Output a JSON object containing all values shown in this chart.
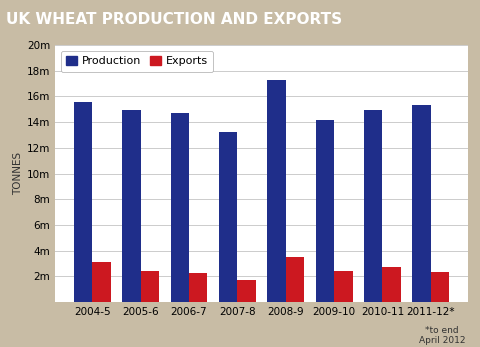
{
  "title": "UK WHEAT PRODUCTION AND EXPORTS",
  "title_bg_color": "#cc1820",
  "title_text_color": "#ffffff",
  "ylabel": "TONNES",
  "categories": [
    "2004-5",
    "2005-6",
    "2006-7",
    "2007-8",
    "2008-9",
    "2009-10",
    "2010-11",
    "2011-12*"
  ],
  "production": [
    15.55,
    14.95,
    14.75,
    13.2,
    17.25,
    14.15,
    14.95,
    15.3
  ],
  "exports": [
    3.1,
    2.4,
    2.25,
    1.7,
    3.5,
    2.4,
    2.7,
    2.3
  ],
  "production_color": "#1f2e8a",
  "exports_color": "#cc1820",
  "ylim": [
    0,
    20
  ],
  "yticks": [
    0,
    2,
    4,
    6,
    8,
    10,
    12,
    14,
    16,
    18,
    20
  ],
  "ytick_labels": [
    "",
    "2m",
    "4m",
    "6m",
    "8m",
    "10m",
    "12m",
    "14m",
    "16m",
    "18m",
    "20m"
  ],
  "background_color": "#c8bca5",
  "plot_bg_color": "#ffffff",
  "grid_color": "#cccccc",
  "legend_labels": [
    "Production",
    "Exports"
  ],
  "footnote": "*to end\nApril 2012",
  "bar_width": 0.38
}
